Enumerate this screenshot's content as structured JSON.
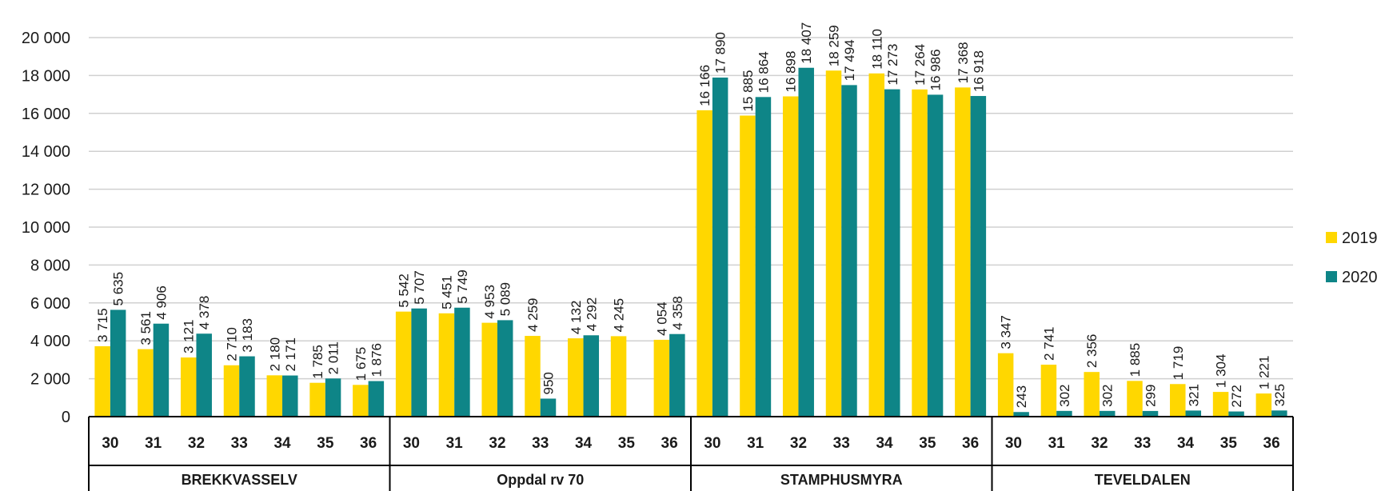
{
  "chart_data": {
    "type": "bar",
    "groups": [
      {
        "name": "BREKKVASSELV",
        "categories": [
          "30",
          "31",
          "32",
          "33",
          "34",
          "35",
          "36"
        ]
      },
      {
        "name": "Oppdal rv 70",
        "categories": [
          "30",
          "31",
          "32",
          "33",
          "34",
          "35",
          "36"
        ]
      },
      {
        "name": "STAMPHUSMYRA",
        "categories": [
          "30",
          "31",
          "32",
          "33",
          "34",
          "35",
          "36"
        ]
      },
      {
        "name": "TEVELDALEN",
        "categories": [
          "30",
          "31",
          "32",
          "33",
          "34",
          "35",
          "36"
        ]
      }
    ],
    "series": [
      {
        "name": "2019",
        "color": "#FFD700",
        "values": [
          3715,
          3561,
          3121,
          2710,
          2180,
          1785,
          1675,
          5542,
          5451,
          4953,
          4259,
          4132,
          4245,
          4054,
          16166,
          15885,
          16898,
          18259,
          18110,
          17264,
          17368,
          3347,
          2741,
          2356,
          1885,
          1719,
          1304,
          1221
        ],
        "labels": [
          "3 715",
          "3 561",
          "3 121",
          "2 710",
          "2 180",
          "1 785",
          "1 675",
          "5 542",
          "5 451",
          "4 953",
          "4 259",
          "4 132",
          "4 245",
          "4 054",
          "16 166",
          "15 885",
          "16 898",
          "18 259",
          "18 110",
          "17 264",
          "17 368",
          "3 347",
          "2 741",
          "2 356",
          "1 885",
          "1 719",
          "1 304",
          "1 221"
        ]
      },
      {
        "name": "2020",
        "color": "#0E8587",
        "values": [
          5635,
          4906,
          4378,
          3183,
          2171,
          2011,
          1876,
          5707,
          5749,
          5089,
          950,
          4292,
          null,
          4358,
          17890,
          16864,
          18407,
          17494,
          17273,
          16986,
          16918,
          243,
          302,
          302,
          299,
          321,
          272,
          325
        ],
        "labels": [
          "5 635",
          "4 906",
          "4 378",
          "3 183",
          "2 171",
          "2 011",
          "1 876",
          "5 707",
          "5 749",
          "5 089",
          "950",
          "4 292",
          "",
          "4 358",
          "17 890",
          "16 864",
          "18 407",
          "17 494",
          "17 273",
          "16 986",
          "16 918",
          "243",
          "302",
          "302",
          "299",
          "321",
          "272",
          "325"
        ]
      }
    ],
    "yticks": [
      0,
      2000,
      4000,
      6000,
      8000,
      10000,
      12000,
      14000,
      16000,
      18000,
      20000
    ],
    "ytick_labels": [
      "0",
      "2 000",
      "4 000",
      "6 000",
      "8 000",
      "10 000",
      "12 000",
      "14 000",
      "16 000",
      "18 000",
      "20 000"
    ],
    "ylim": [
      0,
      20000
    ],
    "grid": true,
    "legend_position": "right"
  }
}
